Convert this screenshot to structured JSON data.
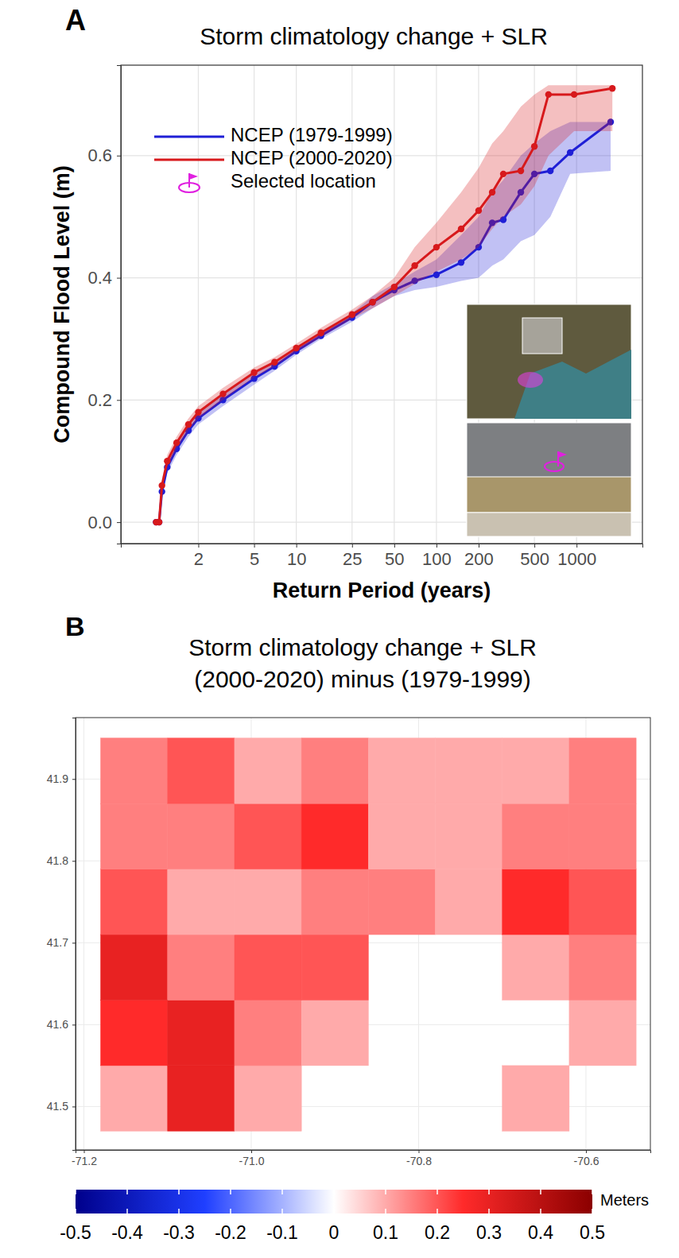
{
  "chart_data": [
    {
      "type": "line",
      "panel": "A",
      "title": "Storm climatology change + SLR",
      "x_label": "Return Period (years)",
      "y_label": "Compound Flood Level (m)",
      "log": "x",
      "grid": true,
      "legend": "top-left",
      "xlim": [
        0.56,
        2950
      ],
      "ylim": [
        -0.035,
        0.748
      ],
      "xticks": [
        2,
        5,
        10,
        25,
        50,
        100,
        200,
        500,
        1000
      ],
      "yticks": [
        {
          "value": 0,
          "label": "0.0"
        },
        {
          "value": 0.2,
          "label": "0.2"
        },
        {
          "value": 0.4,
          "label": "0.4"
        },
        {
          "value": 0.6,
          "label": "0.6"
        }
      ],
      "series": [
        {
          "name": "NCEP (1979-1999)",
          "color": "#1f1fd6",
          "marker": "circle",
          "x": [
            1.0,
            1.05,
            1.1,
            1.2,
            1.4,
            1.7,
            2,
            3,
            5,
            7,
            10,
            15,
            25,
            35,
            50,
            70,
            100,
            150,
            200,
            250,
            300,
            400,
            500,
            650,
            900,
            1750
          ],
          "values": [
            0,
            0,
            0.05,
            0.09,
            0.12,
            0.15,
            0.17,
            0.2,
            0.235,
            0.255,
            0.28,
            0.305,
            0.335,
            0.36,
            0.38,
            0.395,
            0.405,
            0.425,
            0.45,
            0.49,
            0.495,
            0.54,
            0.57,
            0.575,
            0.605,
            0.655
          ],
          "lower": [
            0,
            0,
            0.04,
            0.08,
            0.11,
            0.14,
            0.16,
            0.19,
            0.225,
            0.248,
            0.274,
            0.3,
            0.328,
            0.35,
            0.37,
            0.38,
            0.385,
            0.395,
            0.4,
            0.42,
            0.43,
            0.46,
            0.47,
            0.5,
            0.57,
            0.575
          ],
          "upper": [
            0,
            0.01,
            0.06,
            0.1,
            0.13,
            0.16,
            0.18,
            0.21,
            0.245,
            0.262,
            0.286,
            0.312,
            0.342,
            0.37,
            0.39,
            0.41,
            0.43,
            0.47,
            0.5,
            0.54,
            0.56,
            0.6,
            0.62,
            0.64,
            0.655,
            0.655
          ]
        },
        {
          "name": "NCEP (2000-2020)",
          "color": "#d7191c",
          "marker": "circle",
          "x": [
            1.0,
            1.05,
            1.1,
            1.2,
            1.4,
            1.7,
            2,
            3,
            5,
            7,
            10,
            15,
            25,
            35,
            50,
            70,
            100,
            150,
            200,
            250,
            300,
            400,
            500,
            630,
            960,
            1800
          ],
          "values": [
            0,
            0,
            0.06,
            0.1,
            0.13,
            0.16,
            0.18,
            0.21,
            0.245,
            0.262,
            0.285,
            0.31,
            0.34,
            0.36,
            0.385,
            0.42,
            0.45,
            0.48,
            0.51,
            0.54,
            0.57,
            0.575,
            0.615,
            0.7,
            0.7,
            0.71
          ],
          "lower": [
            0,
            0,
            0.05,
            0.09,
            0.12,
            0.15,
            0.17,
            0.2,
            0.237,
            0.255,
            0.279,
            0.303,
            0.333,
            0.35,
            0.37,
            0.39,
            0.41,
            0.43,
            0.45,
            0.48,
            0.5,
            0.52,
            0.55,
            0.6,
            0.64,
            0.64
          ],
          "upper": [
            0,
            0.01,
            0.07,
            0.11,
            0.14,
            0.17,
            0.19,
            0.22,
            0.253,
            0.27,
            0.292,
            0.318,
            0.348,
            0.37,
            0.4,
            0.45,
            0.49,
            0.54,
            0.58,
            0.62,
            0.64,
            0.68,
            0.7,
            0.715,
            0.715,
            0.715
          ]
        }
      ],
      "annotations": [
        "Selected location"
      ]
    },
    {
      "type": "heatmap",
      "panel": "B",
      "title": "Storm climatology change + SLR\n(2000-2020) minus (1979-1999)",
      "grid": true,
      "xlim": [
        -71.21,
        -70.523
      ],
      "ylim": [
        41.447,
        41.975
      ],
      "xticks": [
        {
          "value": -71.2,
          "label": "-71.2"
        },
        {
          "value": -71,
          "label": "-71.0"
        },
        {
          "value": -70.8,
          "label": "-70.8"
        },
        {
          "value": -70.6,
          "label": "-70.6"
        }
      ],
      "yticks": [
        41.5,
        41.6,
        41.7,
        41.8,
        41.9
      ],
      "lon_edges": [
        -71.18,
        -71.1,
        -71.02,
        -70.94,
        -70.86,
        -70.78,
        -70.7,
        -70.62,
        -70.54
      ],
      "lat_edges": [
        41.47,
        41.55,
        41.63,
        41.71,
        41.79,
        41.87,
        41.95
      ],
      "cells": [
        [
          0.1,
          0.3,
          0.1,
          null,
          null,
          null,
          0.1,
          null
        ],
        [
          0.25,
          0.3,
          0.15,
          0.1,
          null,
          null,
          null,
          0.1
        ],
        [
          0.3,
          0.15,
          0.2,
          0.2,
          null,
          null,
          0.1,
          0.15
        ],
        [
          0.2,
          0.1,
          0.1,
          0.15,
          0.15,
          0.1,
          0.25,
          0.2
        ],
        [
          0.15,
          0.15,
          0.2,
          0.25,
          0.1,
          0.1,
          0.15,
          0.15
        ],
        [
          0.15,
          0.2,
          0.1,
          0.15,
          0.1,
          0.1,
          0.1,
          0.15
        ]
      ],
      "colorbar": {
        "range": [
          -0.5,
          0.5
        ],
        "ticks": [
          -0.5,
          -0.4,
          -0.3,
          -0.2,
          -0.1,
          0,
          0.1,
          0.2,
          0.3,
          0.4,
          0.5
        ],
        "label": "Meters"
      }
    }
  ]
}
